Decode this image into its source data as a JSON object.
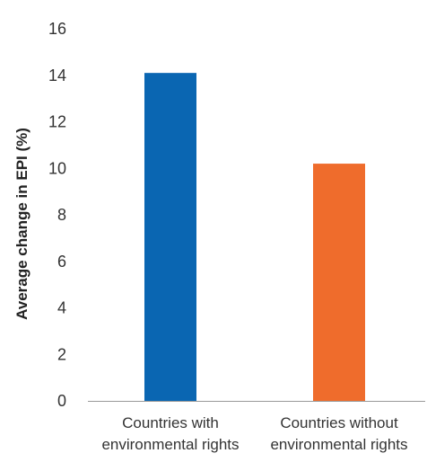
{
  "chart_data": {
    "type": "bar",
    "title": "",
    "xlabel": "",
    "ylabel": "Average change in EPI (%)",
    "ylim": [
      0,
      16
    ],
    "yticks": [
      0,
      2,
      4,
      6,
      8,
      10,
      12,
      14,
      16
    ],
    "grid": false,
    "categories": [
      [
        "Countries with",
        "environmental rights"
      ],
      [
        "Countries without",
        "environmental rights"
      ]
    ],
    "values": [
      14.1,
      10.2
    ],
    "colors": [
      "#0a66b2",
      "#ef6c2c"
    ]
  }
}
